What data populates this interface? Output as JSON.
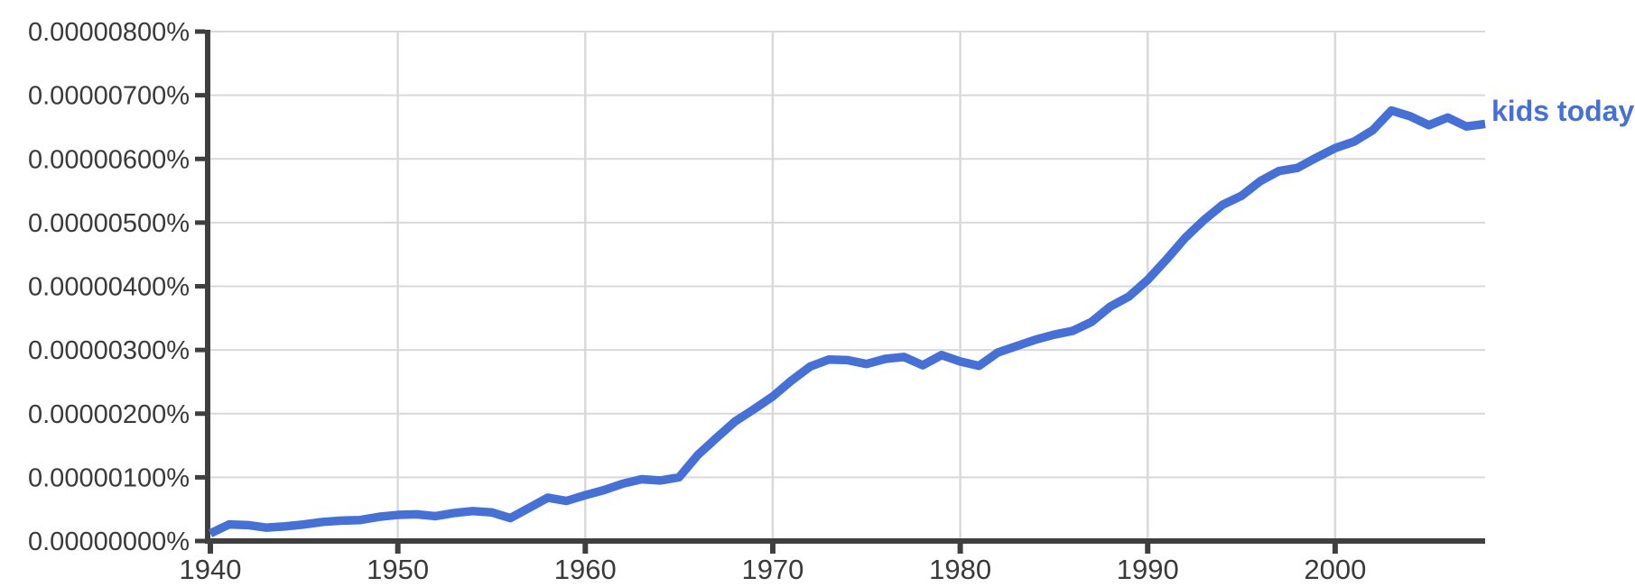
{
  "chart_data": {
    "type": "line",
    "title": "",
    "xlabel": "",
    "ylabel": "",
    "grid": true,
    "legend": {
      "label": "kids today",
      "position": "right of line end"
    },
    "xlim": [
      1940,
      2008
    ],
    "ylim_1e6_percent": [
      0,
      8
    ],
    "y_value_unit": "1e-6 percent (axis shows raw percent strings)",
    "y_ticks_1e6_percent": [
      0,
      1,
      2,
      3,
      4,
      5,
      6,
      7,
      8
    ],
    "y_tick_labels": [
      "0.00000000%",
      "0.00000100%",
      "0.00000200%",
      "0.00000300%",
      "0.00000400%",
      "0.00000500%",
      "0.00000600%",
      "0.00000700%",
      "0.00000800%"
    ],
    "x_tick_years": [
      1940,
      1950,
      1960,
      1970,
      1980,
      1990,
      2000
    ],
    "x_tick_labels": [
      "1940",
      "1950",
      "1960",
      "1970",
      "1980",
      "1990",
      "2000"
    ],
    "years": [
      1940,
      1941,
      1942,
      1943,
      1944,
      1945,
      1946,
      1947,
      1948,
      1949,
      1950,
      1951,
      1952,
      1953,
      1954,
      1955,
      1956,
      1957,
      1958,
      1959,
      1960,
      1961,
      1962,
      1963,
      1964,
      1965,
      1966,
      1967,
      1968,
      1969,
      1970,
      1971,
      1972,
      1973,
      1974,
      1975,
      1976,
      1977,
      1978,
      1979,
      1980,
      1981,
      1982,
      1983,
      1984,
      1985,
      1986,
      1987,
      1988,
      1989,
      1990,
      1991,
      1992,
      1993,
      1994,
      1995,
      1996,
      1997,
      1998,
      1999,
      2000,
      2001,
      2002,
      2003,
      2004,
      2005,
      2006,
      2007,
      2008
    ],
    "series": [
      {
        "name": "kids today",
        "color": "#4470d8",
        "values_1e6_percent": [
          0.12,
          0.26,
          0.25,
          0.21,
          0.23,
          0.26,
          0.3,
          0.32,
          0.33,
          0.38,
          0.41,
          0.42,
          0.39,
          0.44,
          0.47,
          0.45,
          0.36,
          0.52,
          0.68,
          0.63,
          0.72,
          0.8,
          0.9,
          0.97,
          0.95,
          1.0,
          1.35,
          1.62,
          1.88,
          2.07,
          2.27,
          2.52,
          2.74,
          2.85,
          2.84,
          2.78,
          2.86,
          2.89,
          2.76,
          2.92,
          2.82,
          2.75,
          2.96,
          3.06,
          3.16,
          3.24,
          3.3,
          3.44,
          3.68,
          3.84,
          4.1,
          4.42,
          4.76,
          5.04,
          5.28,
          5.42,
          5.65,
          5.81,
          5.86,
          6.02,
          6.17,
          6.27,
          6.45,
          6.76,
          6.67,
          6.53,
          6.65,
          6.51,
          6.55
        ]
      }
    ]
  },
  "colors": {
    "line": "#4470d8",
    "legend_text": "#4470d8",
    "grid": "#d9d9d9",
    "axis": "#3f3f3f",
    "tick_text": "#3a3a3a",
    "background": "#ffffff"
  }
}
